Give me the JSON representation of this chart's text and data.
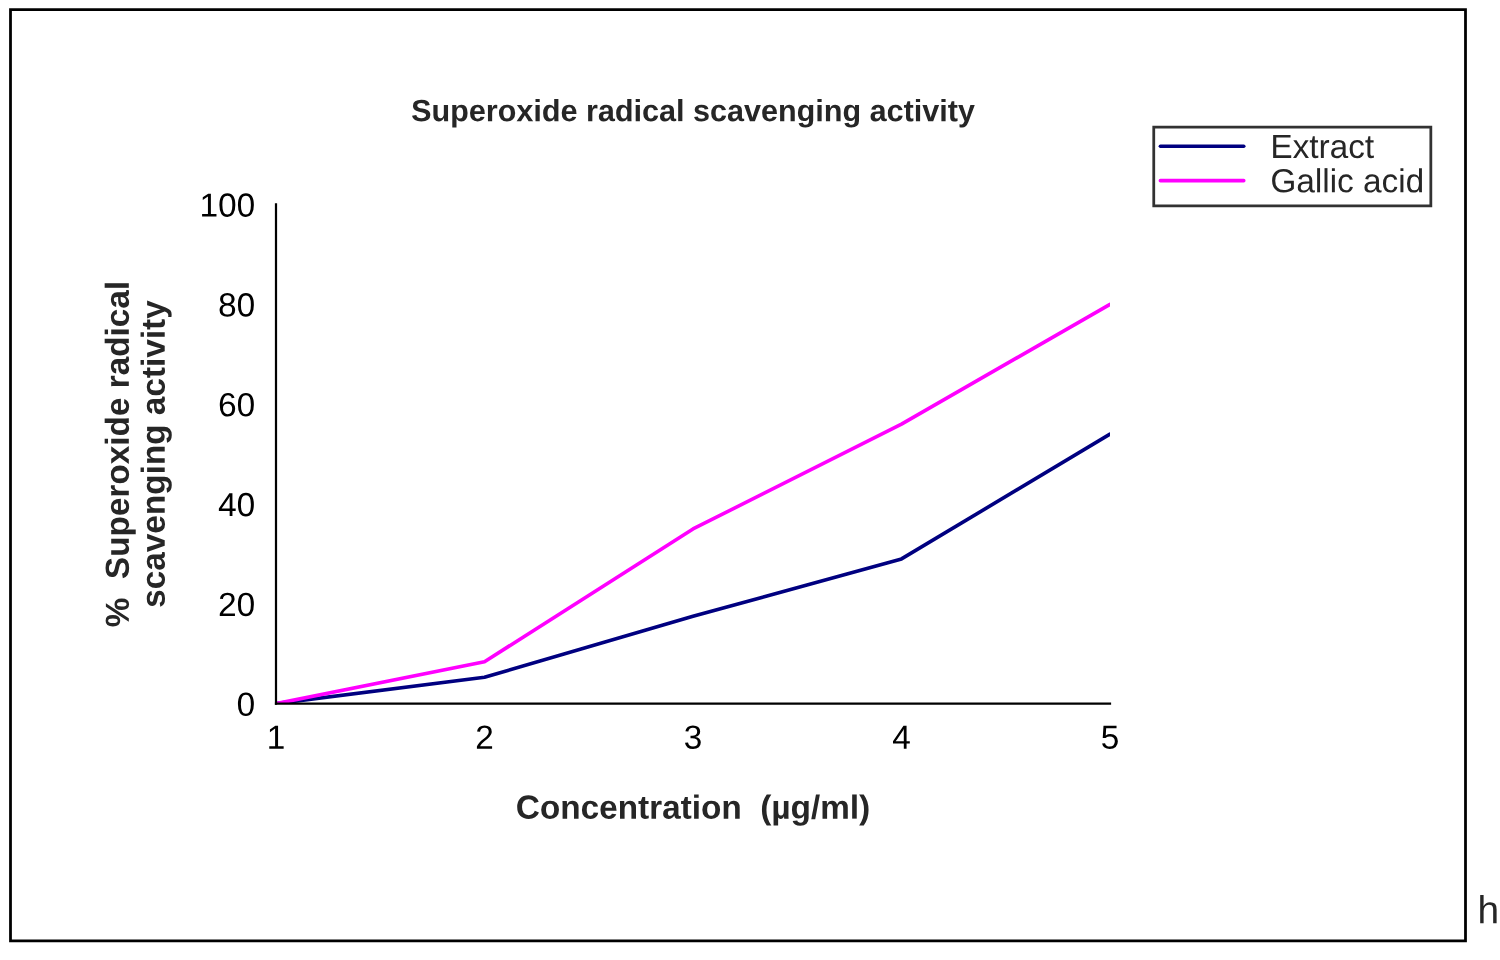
{
  "chart_data": {
    "type": "line",
    "title": "Superoxide radical scavenging activity",
    "xlabel": "Concentration  (µg/ml)",
    "ylabel": "%  Superoxide radical\nscavenging activity",
    "x": [
      1,
      2,
      3,
      4,
      5
    ],
    "series": [
      {
        "name": "Extract",
        "color": "#000080",
        "values": [
          0,
          5.3,
          17.5,
          29,
          54
        ]
      },
      {
        "name": "Gallic acid",
        "color": "#ff00ff",
        "values": [
          0,
          8.4,
          35,
          56,
          80
        ]
      }
    ],
    "xlim": [
      1,
      5
    ],
    "xticks": [
      1,
      2,
      3,
      4,
      5
    ],
    "ylim": [
      0,
      100
    ],
    "yticks": [
      0,
      20,
      40,
      60,
      80,
      100
    ],
    "grid": false,
    "legend": "top right",
    "line_style": "solid",
    "marker": "none",
    "annotations": [
      "h"
    ]
  }
}
